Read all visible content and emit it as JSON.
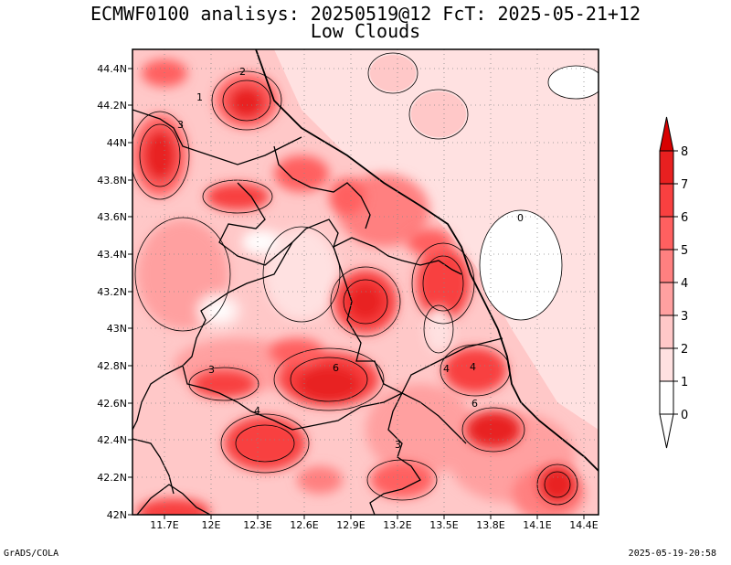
{
  "title_line1": "ECMWF0100 analisys: 20250519@12 FcT: 2025-05-21+12",
  "title_line2": "Low Clouds",
  "footer_left": "GrADS/COLA",
  "footer_right": "2025-05-19-20:58",
  "lon_labels": [
    "11.7E",
    "12E",
    "12.3E",
    "12.6E",
    "12.9E",
    "13.2E",
    "13.5E",
    "13.8E",
    "14.1E",
    "14.4E"
  ],
  "lat_labels": [
    "44.4N",
    "44.2N",
    "44N",
    "43.8N",
    "43.6N",
    "43.4N",
    "43.2N",
    "43N",
    "42.8N",
    "42.6N",
    "42.4N",
    "42.2N",
    "42N"
  ],
  "colorbar": {
    "levels": [
      "0",
      "1",
      "2",
      "3",
      "4",
      "5",
      "6",
      "7",
      "8"
    ],
    "colors": [
      "#ffffff",
      "#ffe1e1",
      "#ffc8c8",
      "#ffa0a0",
      "#ff8080",
      "#ff6060",
      "#f84040",
      "#e82020",
      "#d80000"
    ]
  },
  "contour_labels": [
    "2",
    "3",
    "3",
    "6",
    "4",
    "4",
    "4",
    "6",
    "3",
    "0",
    "1"
  ]
}
